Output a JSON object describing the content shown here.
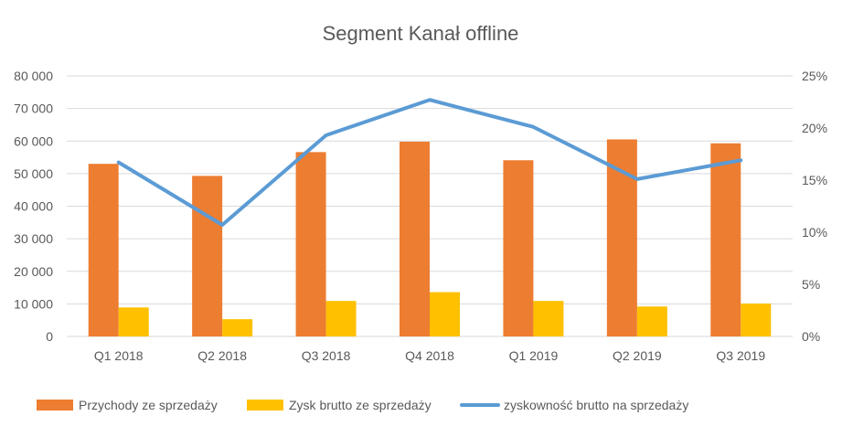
{
  "chart_data": {
    "type": "bar",
    "title": "Segment Kanał offline",
    "categories": [
      "Q1 2018",
      "Q2 2018",
      "Q3 2018",
      "Q4 2018",
      "Q1 2019",
      "Q2 2019",
      "Q3 2019"
    ],
    "series": [
      {
        "name": "Przychody ze sprzedaży",
        "type": "bar",
        "axis": "left",
        "color": "#ed7d31",
        "values": [
          53000,
          49300,
          56600,
          59800,
          54100,
          60500,
          59300
        ]
      },
      {
        "name": "Zysk brutto ze sprzedaży",
        "type": "bar",
        "axis": "left",
        "color": "#ffc000",
        "values": [
          8900,
          5300,
          10900,
          13600,
          10900,
          9200,
          10100
        ]
      },
      {
        "name": "zyskowność brutto na sprzedaży",
        "type": "line",
        "axis": "right",
        "color": "#5b9bd5",
        "values": [
          0.167,
          0.107,
          0.193,
          0.227,
          0.201,
          0.151,
          0.169
        ]
      }
    ],
    "y_left": {
      "ylim": [
        0,
        80000
      ],
      "ticks": [
        "0",
        "10 000",
        "20 000",
        "30 000",
        "40 000",
        "50 000",
        "60 000",
        "70 000",
        "80 000"
      ]
    },
    "y_right": {
      "ylim": [
        0,
        0.25
      ],
      "ticks": [
        "0%",
        "5%",
        "10%",
        "15%",
        "20%",
        "25%"
      ]
    },
    "grid": true,
    "legend_position": "bottom"
  }
}
